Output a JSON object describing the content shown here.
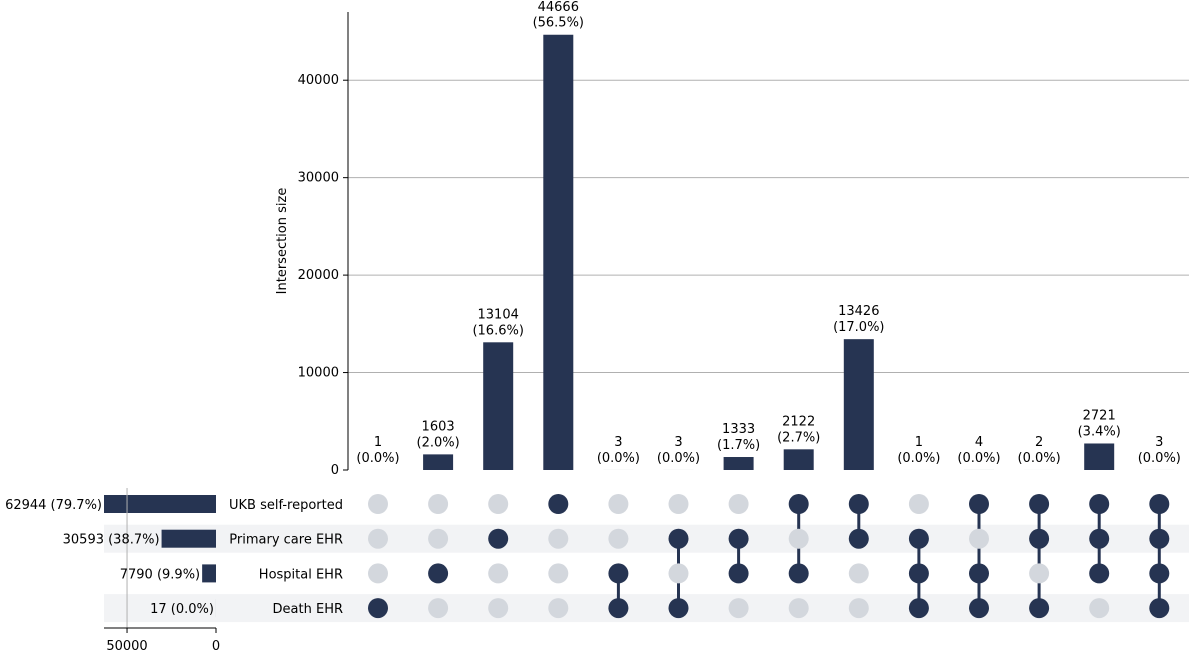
{
  "chart_data": {
    "type": "upset",
    "ylabel": "Intersection size",
    "ylim": [
      0,
      47000
    ],
    "yticks": [
      0,
      10000,
      20000,
      30000,
      40000
    ],
    "grid": true,
    "sets": [
      {
        "name": "UKB self-reported",
        "size": 62944,
        "size_label": "62944 (79.7%)"
      },
      {
        "name": "Primary care EHR",
        "size": 30593,
        "size_label": "30593 (38.7%)"
      },
      {
        "name": "Hospital EHR",
        "size": 7790,
        "size_label": "7790 (9.9%)"
      },
      {
        "name": "Death EHR",
        "size": 17,
        "size_label": "17 (0.0%)"
      }
    ],
    "set_size_axis": {
      "max": 62944,
      "ticks": [
        50000,
        0
      ]
    },
    "intersections": [
      {
        "value": 1,
        "count_label": "1",
        "pct_label": "(0.0%)",
        "members": [
          3
        ]
      },
      {
        "value": 1603,
        "count_label": "1603",
        "pct_label": "(2.0%)",
        "members": [
          2
        ]
      },
      {
        "value": 13104,
        "count_label": "13104",
        "pct_label": "(16.6%)",
        "members": [
          1
        ]
      },
      {
        "value": 44666,
        "count_label": "44666",
        "pct_label": "(56.5%)",
        "members": [
          0
        ]
      },
      {
        "value": 3,
        "count_label": "3",
        "pct_label": "(0.0%)",
        "members": [
          2,
          3
        ]
      },
      {
        "value": 3,
        "count_label": "3",
        "pct_label": "(0.0%)",
        "members": [
          1,
          3
        ]
      },
      {
        "value": 1333,
        "count_label": "1333",
        "pct_label": "(1.7%)",
        "members": [
          1,
          2
        ]
      },
      {
        "value": 2122,
        "count_label": "2122",
        "pct_label": "(2.7%)",
        "members": [
          0,
          2
        ]
      },
      {
        "value": 13426,
        "count_label": "13426",
        "pct_label": "(17.0%)",
        "members": [
          0,
          1
        ]
      },
      {
        "value": 1,
        "count_label": "1",
        "pct_label": "(0.0%)",
        "members": [
          1,
          2,
          3
        ]
      },
      {
        "value": 4,
        "count_label": "4",
        "pct_label": "(0.0%)",
        "members": [
          0,
          2,
          3
        ]
      },
      {
        "value": 2,
        "count_label": "2",
        "pct_label": "(0.0%)",
        "members": [
          0,
          1,
          3
        ]
      },
      {
        "value": 2721,
        "count_label": "2721",
        "pct_label": "(3.4%)",
        "members": [
          0,
          1,
          2
        ]
      },
      {
        "value": 3,
        "count_label": "3",
        "pct_label": "(0.0%)",
        "members": [
          0,
          1,
          2,
          3
        ]
      }
    ],
    "colors": {
      "bar": "#263452",
      "dot_inactive": "#d3d7dd",
      "stripe": "#f2f3f5",
      "grid": "#b0b0b0"
    }
  }
}
